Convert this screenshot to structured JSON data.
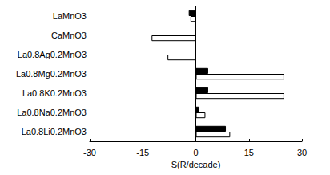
{
  "chart_data": {
    "type": "bar",
    "orientation": "horizontal",
    "categories": [
      "LaMnO3",
      "CaMnO3",
      "La0.8Ag0.2MnO3",
      "La0.8Mg0.2MnO3",
      "La0.8K0.2MnO3",
      "La0.8Na0.2MnO3",
      "La0.8Li0.2MnO3"
    ],
    "series": [
      {
        "color": "#000000",
        "values": [
          -2,
          null,
          null,
          3.5,
          3.5,
          1,
          8.5
        ]
      },
      {
        "color": "#ffffff",
        "values": [
          -1.5,
          -12.5,
          -8,
          25,
          25,
          2.7,
          9.7
        ]
      }
    ],
    "xlabel": "S(R/decade)",
    "xlim": [
      -30,
      30
    ],
    "xticks": [
      -30,
      -15,
      0,
      15,
      30
    ],
    "grid": false
  }
}
